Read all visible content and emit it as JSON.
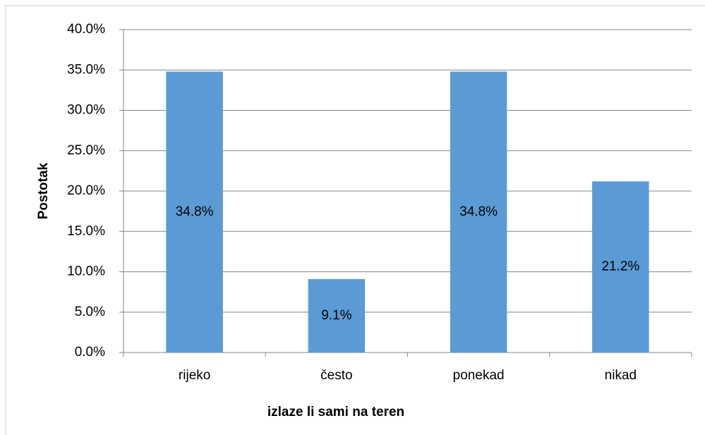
{
  "chart_data": {
    "type": "bar",
    "y_axis_label": "Postotak",
    "x_axis_label": "izlaze li sami na teren",
    "categories": [
      "rijeko",
      "često",
      "ponekad",
      "nikad"
    ],
    "values": [
      34.8,
      9.1,
      34.8,
      21.2
    ],
    "value_labels": [
      "34.8%",
      "9.1%",
      "34.8%",
      "21.2%"
    ],
    "color": "#5b9bd5",
    "ylim": [
      0,
      40
    ],
    "yticks": [
      {
        "value": 0,
        "label": "0.0%"
      },
      {
        "value": 5,
        "label": "5.0%"
      },
      {
        "value": 10,
        "label": "10.0%"
      },
      {
        "value": 15,
        "label": "15.0%"
      },
      {
        "value": 20,
        "label": "20.0%"
      },
      {
        "value": 25,
        "label": "25.0%"
      },
      {
        "value": 30,
        "label": "30.0%"
      },
      {
        "value": 35,
        "label": "35.0%"
      },
      {
        "value": 40,
        "label": "40.0%"
      }
    ],
    "grid": true
  }
}
